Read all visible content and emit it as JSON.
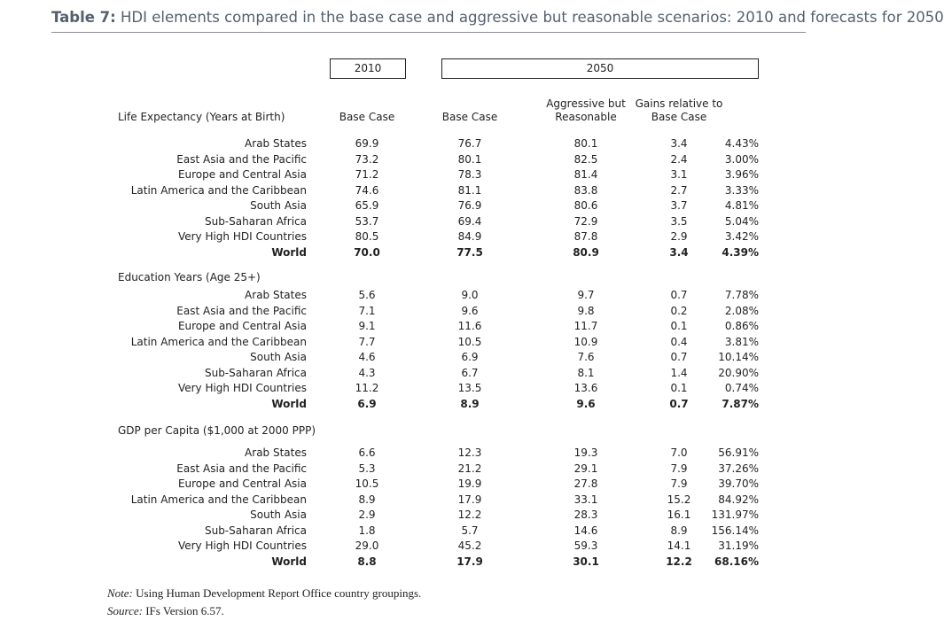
{
  "title": {
    "label": "Table 7:",
    "text": "HDI elements compared in the base case and aggressive but reasonable scenarios: 2010 and forecasts for 2050"
  },
  "year_headers": [
    "2010",
    "2050"
  ],
  "column_headers": [
    "Base Case",
    "Base Case",
    "Aggressive but Reasonable",
    "Gains relative to Base Case"
  ],
  "sections": [
    {
      "label": "Life Expectancy (Years at Birth)",
      "rows": [
        [
          "Arab States",
          "69.9",
          "76.7",
          "80.1",
          "3.4",
          "4.43%"
        ],
        [
          "East Asia and the Pacific",
          "73.2",
          "80.1",
          "82.5",
          "2.4",
          "3.00%"
        ],
        [
          "Europe and Central Asia",
          "71.2",
          "78.3",
          "81.4",
          "3.1",
          "3.96%"
        ],
        [
          "Latin America and the Caribbean",
          "74.6",
          "81.1",
          "83.8",
          "2.7",
          "3.33%"
        ],
        [
          "South Asia",
          "65.9",
          "76.9",
          "80.6",
          "3.7",
          "4.81%"
        ],
        [
          "Sub-Saharan Africa",
          "53.7",
          "69.4",
          "72.9",
          "3.5",
          "5.04%"
        ],
        [
          "Very High HDI Countries",
          "80.5",
          "84.9",
          "87.8",
          "2.9",
          "3.42%"
        ],
        [
          "World",
          "70.0",
          "77.5",
          "80.9",
          "3.4",
          "4.39%"
        ]
      ]
    },
    {
      "label": "Education Years (Age 25+)",
      "rows": [
        [
          "Arab States",
          "5.6",
          "9.0",
          "9.7",
          "0.7",
          "7.78%"
        ],
        [
          "East Asia and the Pacific",
          "7.1",
          "9.6",
          "9.8",
          "0.2",
          "2.08%"
        ],
        [
          "Europe and Central Asia",
          "9.1",
          "11.6",
          "11.7",
          "0.1",
          "0.86%"
        ],
        [
          "Latin America and the Caribbean",
          "7.7",
          "10.5",
          "10.9",
          "0.4",
          "3.81%"
        ],
        [
          "South Asia",
          "4.6",
          "6.9",
          "7.6",
          "0.7",
          "10.14%"
        ],
        [
          "Sub-Saharan Africa",
          "4.3",
          "6.7",
          "8.1",
          "1.4",
          "20.90%"
        ],
        [
          "Very High HDI Countries",
          "11.2",
          "13.5",
          "13.6",
          "0.1",
          "0.74%"
        ],
        [
          "World",
          "6.9",
          "8.9",
          "9.6",
          "0.7",
          "7.87%"
        ]
      ]
    },
    {
      "label": "GDP per Capita ($1,000 at 2000 PPP)",
      "rows": [
        [
          "Arab States",
          "6.6",
          "12.3",
          "19.3",
          "7.0",
          "56.91%"
        ],
        [
          "East Asia and the Pacific",
          "5.3",
          "21.2",
          "29.1",
          "7.9",
          "37.26%"
        ],
        [
          "Europe and Central Asia",
          "10.5",
          "19.9",
          "27.8",
          "7.9",
          "39.70%"
        ],
        [
          "Latin America and the Caribbean",
          "8.9",
          "17.9",
          "33.1",
          "15.2",
          "84.92%"
        ],
        [
          "South Asia",
          "2.9",
          "12.2",
          "28.3",
          "16.1",
          "131.97%"
        ],
        [
          "Sub-Saharan Africa",
          "1.8",
          "5.7",
          "14.6",
          "8.9",
          "156.14%"
        ],
        [
          "Very High HDI Countries",
          "29.0",
          "45.2",
          "59.3",
          "14.1",
          "31.19%"
        ],
        [
          "World",
          "8.8",
          "17.9",
          "30.1",
          "12.2",
          "68.16%"
        ]
      ]
    }
  ],
  "notes": [
    {
      "label": "Note:",
      "text": "Using Human Development Report Office country groupings."
    },
    {
      "label": "Source:",
      "text": "IFs Version 6.57."
    }
  ]
}
